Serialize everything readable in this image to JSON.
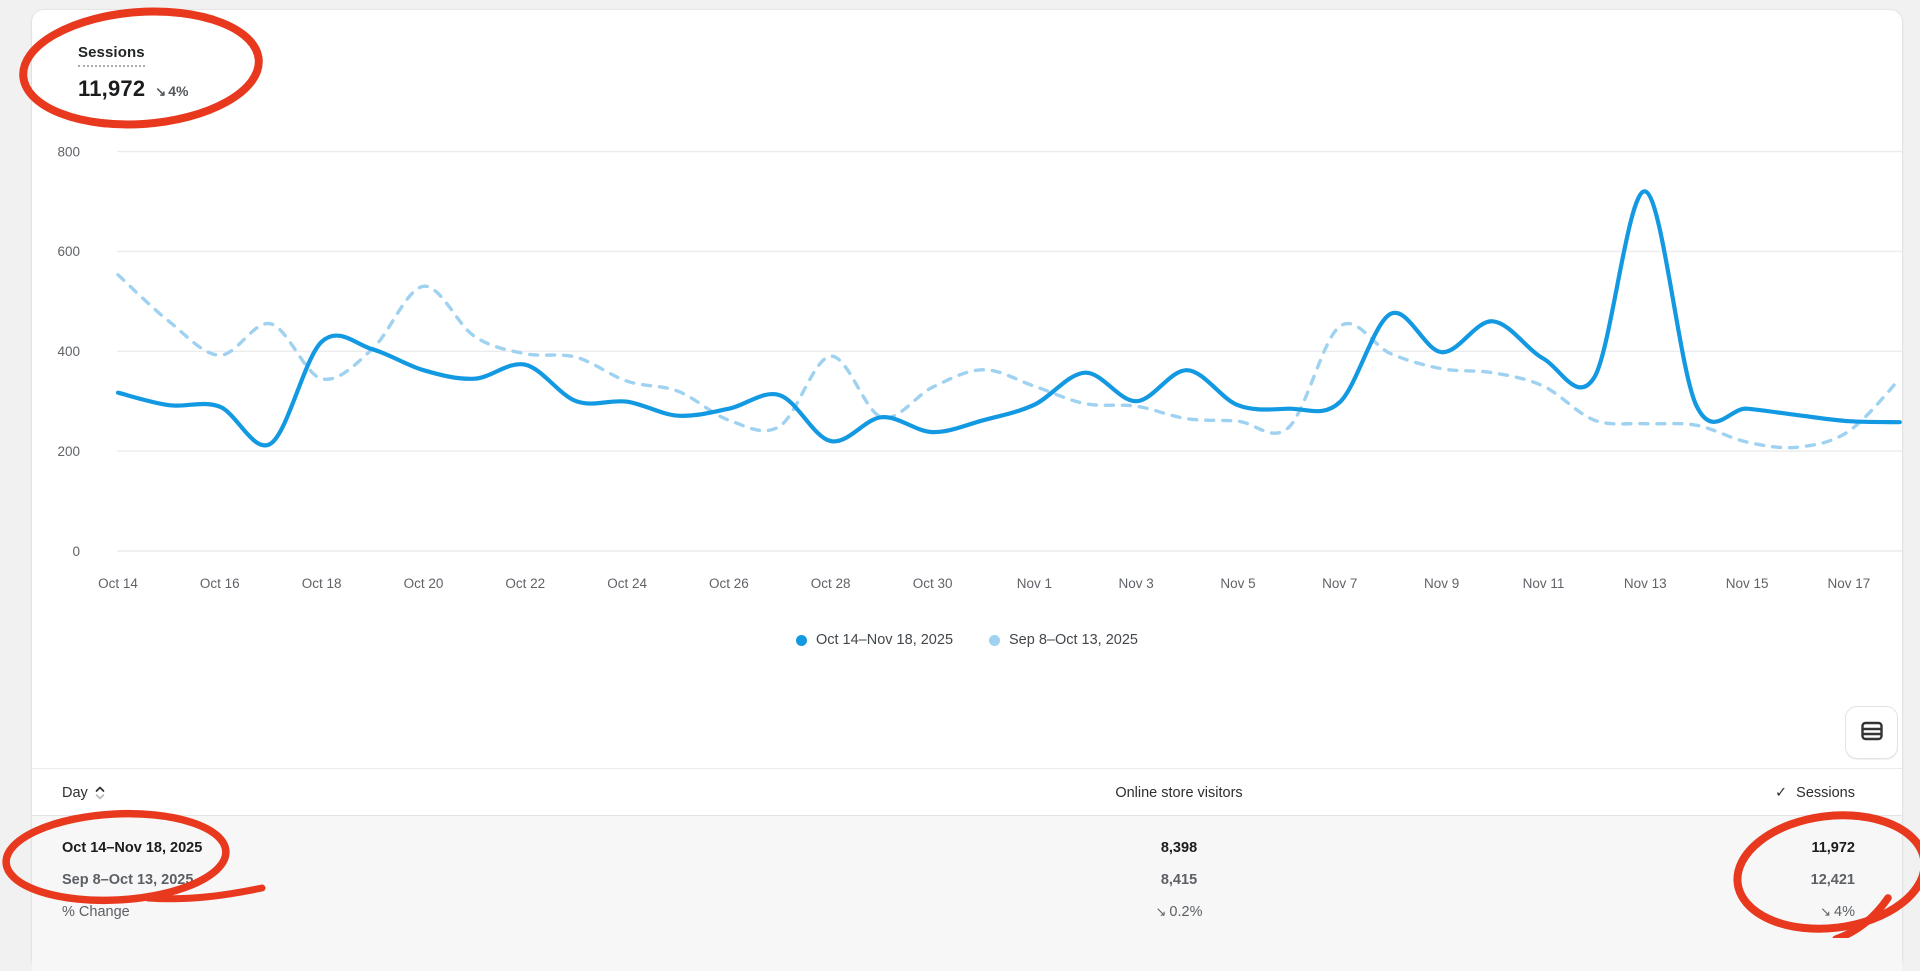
{
  "page": {
    "background": "#f1f1f1",
    "card_background": "#ffffff"
  },
  "metric": {
    "title": "Sessions",
    "value": "11,972",
    "change_arrow": "↘",
    "change": "4%"
  },
  "chart_data": {
    "type": "line",
    "title": "Sessions",
    "xlabel": "",
    "ylabel": "",
    "ylim": [
      0,
      800
    ],
    "y_ticks": [
      0,
      200,
      400,
      600,
      800
    ],
    "grid": true,
    "legend_position": "bottom",
    "x_labels": [
      "Oct 14",
      "Oct 16",
      "Oct 18",
      "Oct 20",
      "Oct 22",
      "Oct 24",
      "Oct 26",
      "Oct 28",
      "Oct 30",
      "Nov 1",
      "Nov 3",
      "Nov 5",
      "Nov 7",
      "Nov 9",
      "Nov 11",
      "Nov 13",
      "Nov 15",
      "Nov 17"
    ],
    "point_interval": "daily",
    "series": [
      {
        "name": "Oct 14–Nov 18, 2025",
        "color": "#1299e2",
        "style": "solid",
        "values": [
          317,
          292,
          289,
          215,
          419,
          404,
          362,
          345,
          373,
          300,
          299,
          271,
          285,
          312,
          220,
          268,
          238,
          262,
          293,
          357,
          300,
          362,
          292,
          285,
          298,
          475,
          398,
          460,
          385,
          348,
          720,
          292,
          285,
          272,
          260,
          258
        ]
      },
      {
        "name": "Sep 8–Oct 13, 2025",
        "color": "#9fd2f0",
        "style": "dashed",
        "values": [
          553,
          460,
          392,
          455,
          345,
          405,
          530,
          430,
          395,
          388,
          340,
          320,
          262,
          250,
          390,
          268,
          328,
          363,
          330,
          295,
          290,
          265,
          260,
          248,
          450,
          395,
          365,
          357,
          330,
          262,
          255,
          252,
          218,
          208,
          240,
          345
        ]
      }
    ]
  },
  "toolbar": {
    "table_view_icon": "table-icon"
  },
  "table": {
    "headers": {
      "day": "Day",
      "visitors": "Online store visitors",
      "sessions": "Sessions",
      "sessions_check": "✓"
    },
    "rows": [
      {
        "day": "Oct 14–Nov 18, 2025",
        "visitors": "8,398",
        "sessions": "11,972"
      },
      {
        "day": "Sep 8–Oct 13, 2025",
        "visitors": "8,415",
        "sessions": "12,421"
      },
      {
        "day": "% Change",
        "visitors_arrow": "↘",
        "visitors": "0.2%",
        "sessions_arrow": "↘",
        "sessions": "4%"
      }
    ]
  },
  "annotations": {
    "color": "#e8391f",
    "items": [
      "circle-around-sessions-metric",
      "circle-around-date-range-rows",
      "circle-around-sessions-values"
    ]
  }
}
